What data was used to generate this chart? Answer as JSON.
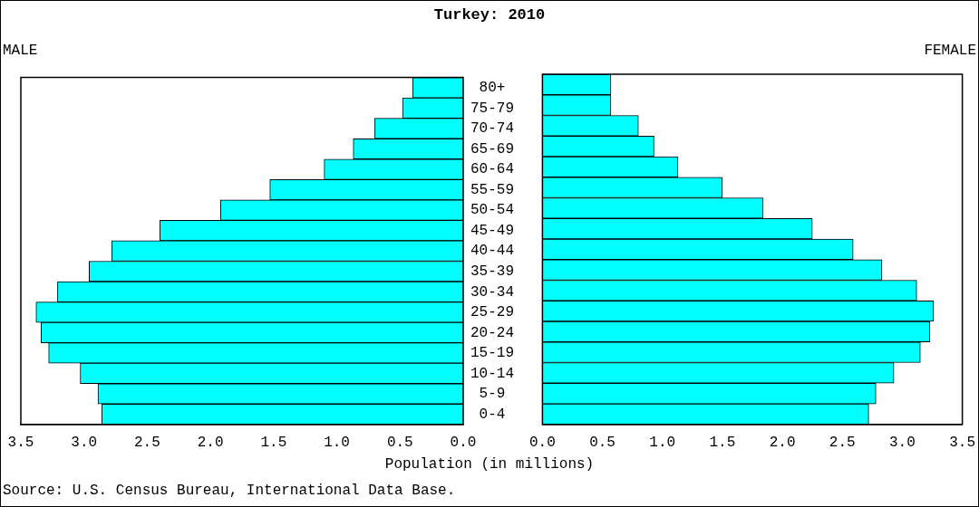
{
  "chart_data": [
    {
      "type": "bar",
      "orientation": "horizontal",
      "title": "Turkey: 2010",
      "subtitle": "MALE",
      "xlabel": "Population (in millions)",
      "annotations": [
        "Source: U.S. Census Bureau, International Data Base."
      ],
      "categories": [
        "80+",
        "75-79",
        "70-74",
        "65-69",
        "60-64",
        "55-59",
        "50-54",
        "45-49",
        "40-44",
        "35-39",
        "30-34",
        "25-29",
        "20-24",
        "15-19",
        "10-14",
        "5-9",
        "0-4"
      ],
      "values": [
        0.4,
        0.48,
        0.7,
        0.87,
        1.1,
        1.53,
        1.92,
        2.4,
        2.78,
        2.96,
        3.21,
        3.38,
        3.34,
        3.28,
        3.03,
        2.89,
        2.86
      ],
      "color": "#00ffff",
      "xlim": [
        3.5,
        0
      ],
      "xticks": [
        3.5,
        {
          "value": 3,
          "label": "3.0"
        },
        2.5,
        {
          "value": 2,
          "label": "2.0"
        },
        1.5,
        {
          "value": 1,
          "label": "1.0"
        },
        0.5,
        {
          "value": 0,
          "label": "0.0"
        }
      ]
    },
    {
      "type": "bar",
      "orientation": "horizontal",
      "subtitle": "FEMALE",
      "tick_labels": "x",
      "categories": [
        null,
        null,
        null,
        null,
        null,
        null,
        null,
        null,
        null,
        null,
        null,
        null,
        null,
        null,
        null,
        null,
        null
      ],
      "values": [
        0.57,
        0.57,
        0.8,
        0.93,
        1.13,
        1.5,
        1.84,
        2.25,
        2.59,
        2.83,
        3.12,
        3.26,
        3.23,
        3.15,
        2.93,
        2.78,
        2.72
      ],
      "color": "#00ffff",
      "xlim": [
        0,
        3.5
      ],
      "xticks": [
        {
          "value": 0,
          "label": "0.0"
        },
        0.5,
        {
          "value": 1,
          "label": "1.0"
        },
        1.5,
        {
          "value": 2,
          "label": "2.0"
        },
        2.5,
        {
          "value": 3,
          "label": "3.0"
        },
        3.5
      ]
    }
  ]
}
